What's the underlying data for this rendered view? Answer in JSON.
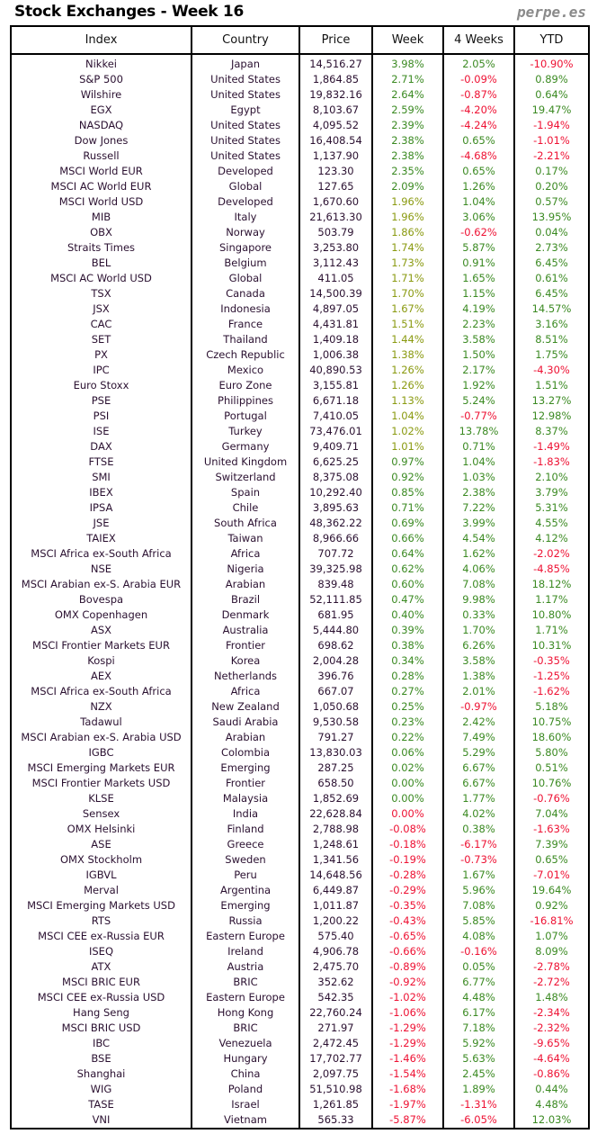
{
  "title": "Stock Exchanges - Week 16",
  "brand": "perpe.es",
  "colors": {
    "positive": "#3b8a22",
    "low_positive": "#8a9a10",
    "negative": "#ee1133"
  },
  "columns": [
    "Index",
    "Country",
    "Price",
    "Week",
    "4 Weeks",
    "YTD"
  ],
  "rows": [
    [
      "Nikkei",
      "Japan",
      "14,516.27",
      "3.98%",
      "2.05%",
      "-10.90%"
    ],
    [
      "S&P 500",
      "United States",
      "1,864.85",
      "2.71%",
      "-0.09%",
      "0.89%"
    ],
    [
      "Wilshire",
      "United States",
      "19,832.16",
      "2.64%",
      "-0.87%",
      "0.64%"
    ],
    [
      "EGX",
      "Egypt",
      "8,103.67",
      "2.59%",
      "-4.20%",
      "19.47%"
    ],
    [
      "NASDAQ",
      "United States",
      "4,095.52",
      "2.39%",
      "-4.24%",
      "-1.94%"
    ],
    [
      "Dow Jones",
      "United States",
      "16,408.54",
      "2.38%",
      "0.65%",
      "-1.01%"
    ],
    [
      "Russell",
      "United States",
      "1,137.90",
      "2.38%",
      "-4.68%",
      "-2.21%"
    ],
    [
      "MSCI World EUR",
      "Developed",
      "123.30",
      "2.35%",
      "0.65%",
      "0.17%"
    ],
    [
      "MSCI AC World EUR",
      "Global",
      "127.65",
      "2.09%",
      "1.26%",
      "0.20%"
    ],
    [
      "MSCI World USD",
      "Developed",
      "1,670.60",
      "1.96%",
      "1.04%",
      "0.57%"
    ],
    [
      "MIB",
      "Italy",
      "21,613.30",
      "1.96%",
      "3.06%",
      "13.95%"
    ],
    [
      "OBX",
      "Norway",
      "503.79",
      "1.86%",
      "-0.62%",
      "0.04%"
    ],
    [
      "Straits Times",
      "Singapore",
      "3,253.80",
      "1.74%",
      "5.87%",
      "2.73%"
    ],
    [
      "BEL",
      "Belgium",
      "3,112.43",
      "1.73%",
      "0.91%",
      "6.45%"
    ],
    [
      "MSCI AC World USD",
      "Global",
      "411.05",
      "1.71%",
      "1.65%",
      "0.61%"
    ],
    [
      "TSX",
      "Canada",
      "14,500.39",
      "1.70%",
      "1.15%",
      "6.45%"
    ],
    [
      "JSX",
      "Indonesia",
      "4,897.05",
      "1.67%",
      "4.19%",
      "14.57%"
    ],
    [
      "CAC",
      "France",
      "4,431.81",
      "1.51%",
      "2.23%",
      "3.16%"
    ],
    [
      "SET",
      "Thailand",
      "1,409.18",
      "1.44%",
      "3.58%",
      "8.51%"
    ],
    [
      "PX",
      "Czech Republic",
      "1,006.38",
      "1.38%",
      "1.50%",
      "1.75%"
    ],
    [
      "IPC",
      "Mexico",
      "40,890.53",
      "1.26%",
      "2.17%",
      "-4.30%"
    ],
    [
      "Euro Stoxx",
      "Euro Zone",
      "3,155.81",
      "1.26%",
      "1.92%",
      "1.51%"
    ],
    [
      "PSE",
      "Philippines",
      "6,671.18",
      "1.13%",
      "5.24%",
      "13.27%"
    ],
    [
      "PSI",
      "Portugal",
      "7,410.05",
      "1.04%",
      "-0.77%",
      "12.98%"
    ],
    [
      "ISE",
      "Turkey",
      "73,476.01",
      "1.02%",
      "13.78%",
      "8.37%"
    ],
    [
      "DAX",
      "Germany",
      "9,409.71",
      "1.01%",
      "0.71%",
      "-1.49%"
    ],
    [
      "FTSE",
      "United Kingdom",
      "6,625.25",
      "0.97%",
      "1.04%",
      "-1.83%"
    ],
    [
      "SMI",
      "Switzerland",
      "8,375.08",
      "0.92%",
      "1.03%",
      "2.10%"
    ],
    [
      "IBEX",
      "Spain",
      "10,292.40",
      "0.85%",
      "2.38%",
      "3.79%"
    ],
    [
      "IPSA",
      "Chile",
      "3,895.63",
      "0.71%",
      "7.22%",
      "5.31%"
    ],
    [
      "JSE",
      "South Africa",
      "48,362.22",
      "0.69%",
      "3.99%",
      "4.55%"
    ],
    [
      "TAIEX",
      "Taiwan",
      "8,966.66",
      "0.66%",
      "4.54%",
      "4.12%"
    ],
    [
      "MSCI Africa ex-South Africa",
      "Africa",
      "707.72",
      "0.64%",
      "1.62%",
      "-2.02%"
    ],
    [
      "NSE",
      "Nigeria",
      "39,325.98",
      "0.62%",
      "4.06%",
      "-4.85%"
    ],
    [
      "MSCI Arabian ex-S. Arabia EUR",
      "Arabian",
      "839.48",
      "0.60%",
      "7.08%",
      "18.12%"
    ],
    [
      "Bovespa",
      "Brazil",
      "52,111.85",
      "0.47%",
      "9.98%",
      "1.17%"
    ],
    [
      "OMX Copenhagen",
      "Denmark",
      "681.95",
      "0.40%",
      "0.33%",
      "10.80%"
    ],
    [
      "ASX",
      "Australia",
      "5,444.80",
      "0.39%",
      "1.70%",
      "1.71%"
    ],
    [
      "MSCI Frontier Markets EUR",
      "Frontier",
      "698.62",
      "0.38%",
      "6.26%",
      "10.31%"
    ],
    [
      "Kospi",
      "Korea",
      "2,004.28",
      "0.34%",
      "3.58%",
      "-0.35%"
    ],
    [
      "AEX",
      "Netherlands",
      "396.76",
      "0.28%",
      "1.38%",
      "-1.25%"
    ],
    [
      "MSCI Africa ex-South Africa",
      "Africa",
      "667.07",
      "0.27%",
      "2.01%",
      "-1.62%"
    ],
    [
      "NZX",
      "New Zealand",
      "1,050.68",
      "0.25%",
      "-0.97%",
      "5.18%"
    ],
    [
      "Tadawul",
      "Saudi Arabia",
      "9,530.58",
      "0.23%",
      "2.42%",
      "10.75%"
    ],
    [
      "MSCI Arabian ex-S. Arabia USD",
      "Arabian",
      "791.27",
      "0.22%",
      "7.49%",
      "18.60%"
    ],
    [
      "IGBC",
      "Colombia",
      "13,830.03",
      "0.06%",
      "5.29%",
      "5.80%"
    ],
    [
      "MSCI Emerging Markets EUR",
      "Emerging",
      "287.25",
      "0.02%",
      "6.67%",
      "0.51%"
    ],
    [
      "MSCI Frontier Markets USD",
      "Frontier",
      "658.50",
      "0.00%",
      "6.67%",
      "10.76%"
    ],
    [
      "KLSE",
      "Malaysia",
      "1,852.69",
      "0.00%",
      "1.77%",
      "-0.76%"
    ],
    [
      "Sensex",
      "India",
      "22,628.84",
      "0.00%",
      "4.02%",
      "7.04%"
    ],
    [
      "OMX Helsinki",
      "Finland",
      "2,788.98",
      "-0.08%",
      "0.38%",
      "-1.63%"
    ],
    [
      "ASE",
      "Greece",
      "1,248.61",
      "-0.18%",
      "-6.17%",
      "7.39%"
    ],
    [
      "OMX Stockholm",
      "Sweden",
      "1,341.56",
      "-0.19%",
      "-0.73%",
      "0.65%"
    ],
    [
      "IGBVL",
      "Peru",
      "14,648.56",
      "-0.28%",
      "1.67%",
      "-7.01%"
    ],
    [
      "Merval",
      "Argentina",
      "6,449.87",
      "-0.29%",
      "5.96%",
      "19.64%"
    ],
    [
      "MSCI Emerging Markets USD",
      "Emerging",
      "1,011.87",
      "-0.35%",
      "7.08%",
      "0.92%"
    ],
    [
      "RTS",
      "Russia",
      "1,200.22",
      "-0.43%",
      "5.85%",
      "-16.81%"
    ],
    [
      "MSCI CEE ex-Russia EUR",
      "Eastern Europe",
      "575.40",
      "-0.65%",
      "4.08%",
      "1.07%"
    ],
    [
      "ISEQ",
      "Ireland",
      "4,906.78",
      "-0.66%",
      "-0.16%",
      "8.09%"
    ],
    [
      "ATX",
      "Austria",
      "2,475.70",
      "-0.89%",
      "0.05%",
      "-2.78%"
    ],
    [
      "MSCI BRIC EUR",
      "BRIC",
      "352.62",
      "-0.92%",
      "6.77%",
      "-2.72%"
    ],
    [
      "MSCI CEE ex-Russia USD",
      "Eastern Europe",
      "542.35",
      "-1.02%",
      "4.48%",
      "1.48%"
    ],
    [
      "Hang Seng",
      "Hong Kong",
      "22,760.24",
      "-1.06%",
      "6.17%",
      "-2.34%"
    ],
    [
      "MSCI BRIC USD",
      "BRIC",
      "271.97",
      "-1.29%",
      "7.18%",
      "-2.32%"
    ],
    [
      "IBC",
      "Venezuela",
      "2,472.45",
      "-1.29%",
      "5.92%",
      "-9.65%"
    ],
    [
      "BSE",
      "Hungary",
      "17,702.77",
      "-1.46%",
      "5.63%",
      "-4.64%"
    ],
    [
      "Shanghai",
      "China",
      "2,097.75",
      "-1.54%",
      "2.45%",
      "-0.86%"
    ],
    [
      "WIG",
      "Poland",
      "51,510.98",
      "-1.68%",
      "1.89%",
      "0.44%"
    ],
    [
      "TASE",
      "Israel",
      "1,261.85",
      "-1.97%",
      "-1.31%",
      "4.48%"
    ],
    [
      "VNI",
      "Vietnam",
      "565.33",
      "-5.87%",
      "-6.05%",
      "12.03%"
    ]
  ]
}
